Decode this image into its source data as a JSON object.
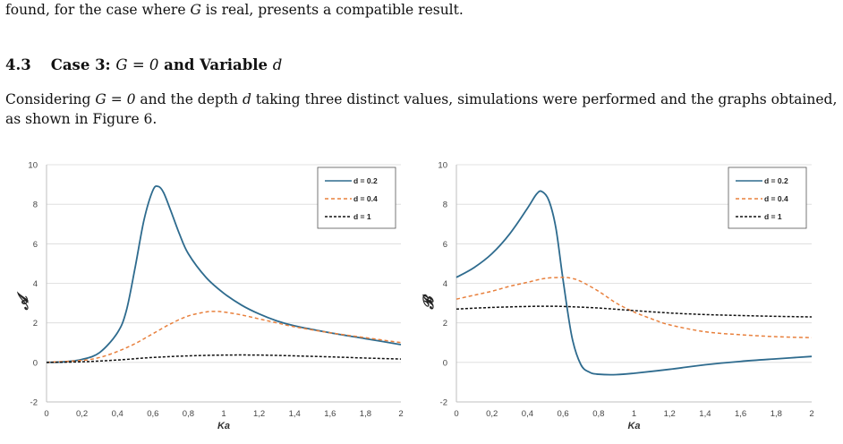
{
  "text": {
    "top_line_a": "found, for the case where ",
    "top_line_var": "G",
    "top_line_b": " is real, presents a compatible result.",
    "section_number": "4.3",
    "section_title_a": "Case 3: ",
    "section_title_math": "G = 0",
    "section_title_b": " and Variable ",
    "section_title_var": "d",
    "para_a": "Considering ",
    "para_math": "G = 0",
    "para_b": " and the depth ",
    "para_var": "d",
    "para_c": " taking three distinct values, simulations were performed and the graphs obtained, as shown in Figure 6."
  },
  "colors": {
    "d02": "#2e6b8e",
    "d04": "#e8803d",
    "d1": "#111111",
    "grid": "#d9d9d9",
    "axis": "#bfbfbf"
  },
  "chart_data": [
    {
      "type": "line",
      "xlabel": "Ka",
      "ylabel": "𝓐",
      "xlim": [
        0,
        2
      ],
      "ylim": [
        -2,
        10
      ],
      "x_ticks": [
        "0",
        "0,2",
        "0,4",
        "0,6",
        "0,8",
        "1",
        "1,2",
        "1,4",
        "1,6",
        "1,8",
        "2"
      ],
      "y_ticks": [
        "-2",
        "0",
        "2",
        "4",
        "6",
        "8",
        "10"
      ],
      "grid": "horizontal",
      "legend": "top-right",
      "series": [
        {
          "name": "d = 0.2",
          "style": "solid",
          "x": [
            0,
            0.1,
            0.2,
            0.3,
            0.4,
            0.45,
            0.5,
            0.55,
            0.6,
            0.63,
            0.66,
            0.7,
            0.75,
            0.8,
            0.9,
            1.0,
            1.1,
            1.2,
            1.3,
            1.4,
            1.6,
            1.8,
            2.0
          ],
          "y": [
            0,
            0.03,
            0.15,
            0.5,
            1.5,
            2.6,
            4.8,
            7.2,
            8.7,
            8.9,
            8.6,
            7.7,
            6.5,
            5.5,
            4.3,
            3.5,
            2.9,
            2.45,
            2.1,
            1.85,
            1.5,
            1.2,
            0.9
          ]
        },
        {
          "name": "d = 0.4",
          "style": "dashed",
          "x": [
            0,
            0.2,
            0.3,
            0.4,
            0.5,
            0.6,
            0.7,
            0.8,
            0.9,
            0.95,
            1.0,
            1.1,
            1.2,
            1.3,
            1.4,
            1.6,
            1.8,
            2.0
          ],
          "y": [
            0,
            0.1,
            0.25,
            0.55,
            0.95,
            1.45,
            1.95,
            2.35,
            2.55,
            2.58,
            2.55,
            2.4,
            2.2,
            2.0,
            1.8,
            1.5,
            1.25,
            1.0
          ]
        },
        {
          "name": "d = 1",
          "style": "dashed",
          "x": [
            0,
            0.2,
            0.4,
            0.6,
            0.8,
            1.0,
            1.2,
            1.4,
            1.6,
            1.8,
            2.0
          ],
          "y": [
            0,
            0.03,
            0.12,
            0.25,
            0.33,
            0.37,
            0.37,
            0.33,
            0.28,
            0.22,
            0.17
          ]
        }
      ]
    },
    {
      "type": "line",
      "xlabel": "Ka",
      "ylabel": "𝓑",
      "xlim": [
        0,
        2
      ],
      "ylim": [
        -2,
        10
      ],
      "x_ticks": [
        "0",
        "0,2",
        "0,4",
        "0,6",
        "0,8",
        "1",
        "1,2",
        "1,4",
        "1,6",
        "1,8",
        "2"
      ],
      "y_ticks": [
        "-2",
        "0",
        "2",
        "4",
        "6",
        "8",
        "10"
      ],
      "grid": "horizontal",
      "legend": "top-right",
      "series": [
        {
          "name": "d = 0.2",
          "style": "solid",
          "x": [
            0,
            0.1,
            0.2,
            0.3,
            0.4,
            0.45,
            0.48,
            0.52,
            0.56,
            0.6,
            0.65,
            0.7,
            0.75,
            0.8,
            0.9,
            1.0,
            1.2,
            1.4,
            1.6,
            1.8,
            2.0
          ],
          "y": [
            4.3,
            4.8,
            5.5,
            6.5,
            7.8,
            8.5,
            8.65,
            8.2,
            6.8,
            4.2,
            1.3,
            -0.1,
            -0.5,
            -0.6,
            -0.62,
            -0.55,
            -0.35,
            -0.12,
            0.05,
            0.18,
            0.3
          ]
        },
        {
          "name": "d = 0.4",
          "style": "dashed",
          "x": [
            0,
            0.1,
            0.2,
            0.3,
            0.4,
            0.5,
            0.6,
            0.65,
            0.7,
            0.8,
            0.9,
            1.0,
            1.1,
            1.2,
            1.4,
            1.6,
            1.8,
            2.0
          ],
          "y": [
            3.2,
            3.4,
            3.6,
            3.85,
            4.05,
            4.25,
            4.3,
            4.25,
            4.1,
            3.6,
            3.0,
            2.55,
            2.2,
            1.9,
            1.55,
            1.4,
            1.3,
            1.25
          ]
        },
        {
          "name": "d = 1",
          "style": "dashed",
          "x": [
            0,
            0.2,
            0.4,
            0.5,
            0.6,
            0.8,
            1.0,
            1.2,
            1.4,
            1.6,
            1.8,
            2.0
          ],
          "y": [
            2.7,
            2.78,
            2.83,
            2.84,
            2.83,
            2.75,
            2.62,
            2.5,
            2.42,
            2.37,
            2.33,
            2.3
          ]
        }
      ]
    }
  ]
}
